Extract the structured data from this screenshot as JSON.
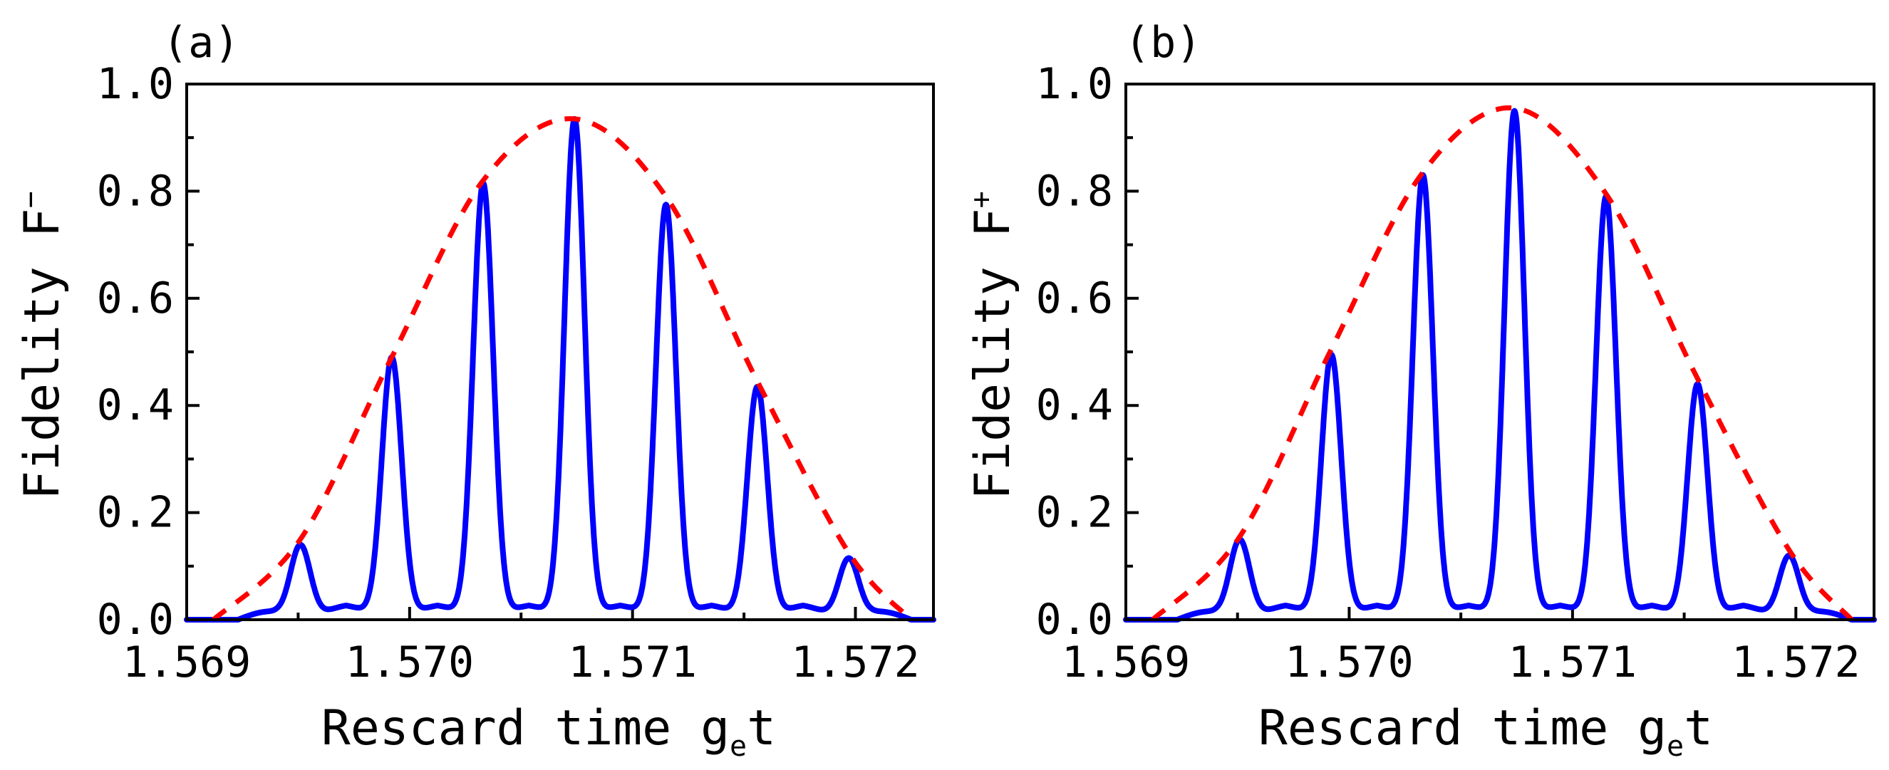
{
  "chart_data": [
    {
      "type": "line",
      "panel_label": "(a)",
      "xlabel": "Rescard time g",
      "xlabel_sub": "e",
      "xlabel_tail": "t",
      "ylabel": "Fidelity F",
      "ylabel_sup": "−",
      "xlim": [
        1.569,
        1.57235
      ],
      "ylim": [
        0.0,
        1.0
      ],
      "xticks": [
        1.569,
        1.57,
        1.571,
        1.572
      ],
      "xtick_labels": [
        "1.569",
        "1.570",
        "1.571",
        "1.572"
      ],
      "yticks": [
        0.0,
        0.2,
        0.4,
        0.6,
        0.8,
        1.0
      ],
      "ytick_labels": [
        "0.0",
        "0.2",
        "0.4",
        "0.6",
        "0.8",
        "1.0"
      ],
      "series": [
        {
          "name": "fidelity-oscillation",
          "style": "solid",
          "color": "#0000ff",
          "peaks": [
            {
              "x": 1.56951,
              "y": 0.14
            },
            {
              "x": 1.56992,
              "y": 0.49
            },
            {
              "x": 1.57033,
              "y": 0.815
            },
            {
              "x": 1.57074,
              "y": 0.935
            },
            {
              "x": 1.57115,
              "y": 0.775
            },
            {
              "x": 1.57156,
              "y": 0.435
            },
            {
              "x": 1.57197,
              "y": 0.115
            }
          ],
          "baseline_between_peaks": 0.03
        },
        {
          "name": "envelope",
          "style": "dashed",
          "color": "#ff0000",
          "points": [
            {
              "x": 1.56912,
              "y": 0.0
            },
            {
              "x": 1.56951,
              "y": 0.15
            },
            {
              "x": 1.56992,
              "y": 0.49
            },
            {
              "x": 1.57033,
              "y": 0.82
            },
            {
              "x": 1.57074,
              "y": 0.935
            },
            {
              "x": 1.57115,
              "y": 0.79
            },
            {
              "x": 1.57156,
              "y": 0.445
            },
            {
              "x": 1.57197,
              "y": 0.125
            },
            {
              "x": 1.57225,
              "y": 0.0
            }
          ]
        }
      ]
    },
    {
      "type": "line",
      "panel_label": "(b)",
      "xlabel": "Rescard time g",
      "xlabel_sub": "e",
      "xlabel_tail": "t",
      "ylabel": "Fidelity F",
      "ylabel_sup": "+",
      "xlim": [
        1.569,
        1.57235
      ],
      "ylim": [
        0.0,
        1.0
      ],
      "xticks": [
        1.569,
        1.57,
        1.571,
        1.572
      ],
      "xtick_labels": [
        "1.569",
        "1.570",
        "1.571",
        "1.572"
      ],
      "yticks": [
        0.0,
        0.2,
        0.4,
        0.6,
        0.8,
        1.0
      ],
      "ytick_labels": [
        "0.0",
        "0.2",
        "0.4",
        "0.6",
        "0.8",
        "1.0"
      ],
      "series": [
        {
          "name": "fidelity-oscillation",
          "style": "solid",
          "color": "#0000ff",
          "peaks": [
            {
              "x": 1.56951,
              "y": 0.15
            },
            {
              "x": 1.56992,
              "y": 0.495
            },
            {
              "x": 1.57033,
              "y": 0.83
            },
            {
              "x": 1.57074,
              "y": 0.95
            },
            {
              "x": 1.57115,
              "y": 0.79
            },
            {
              "x": 1.57156,
              "y": 0.44
            },
            {
              "x": 1.57197,
              "y": 0.12
            }
          ],
          "baseline_between_peaks": 0.03
        },
        {
          "name": "envelope",
          "style": "dashed",
          "color": "#ff0000",
          "points": [
            {
              "x": 1.56912,
              "y": 0.0
            },
            {
              "x": 1.56951,
              "y": 0.155
            },
            {
              "x": 1.56992,
              "y": 0.505
            },
            {
              "x": 1.57033,
              "y": 0.835
            },
            {
              "x": 1.57074,
              "y": 0.955
            },
            {
              "x": 1.57115,
              "y": 0.795
            },
            {
              "x": 1.57156,
              "y": 0.45
            },
            {
              "x": 1.57197,
              "y": 0.13
            },
            {
              "x": 1.57225,
              "y": 0.0
            }
          ]
        }
      ]
    }
  ]
}
